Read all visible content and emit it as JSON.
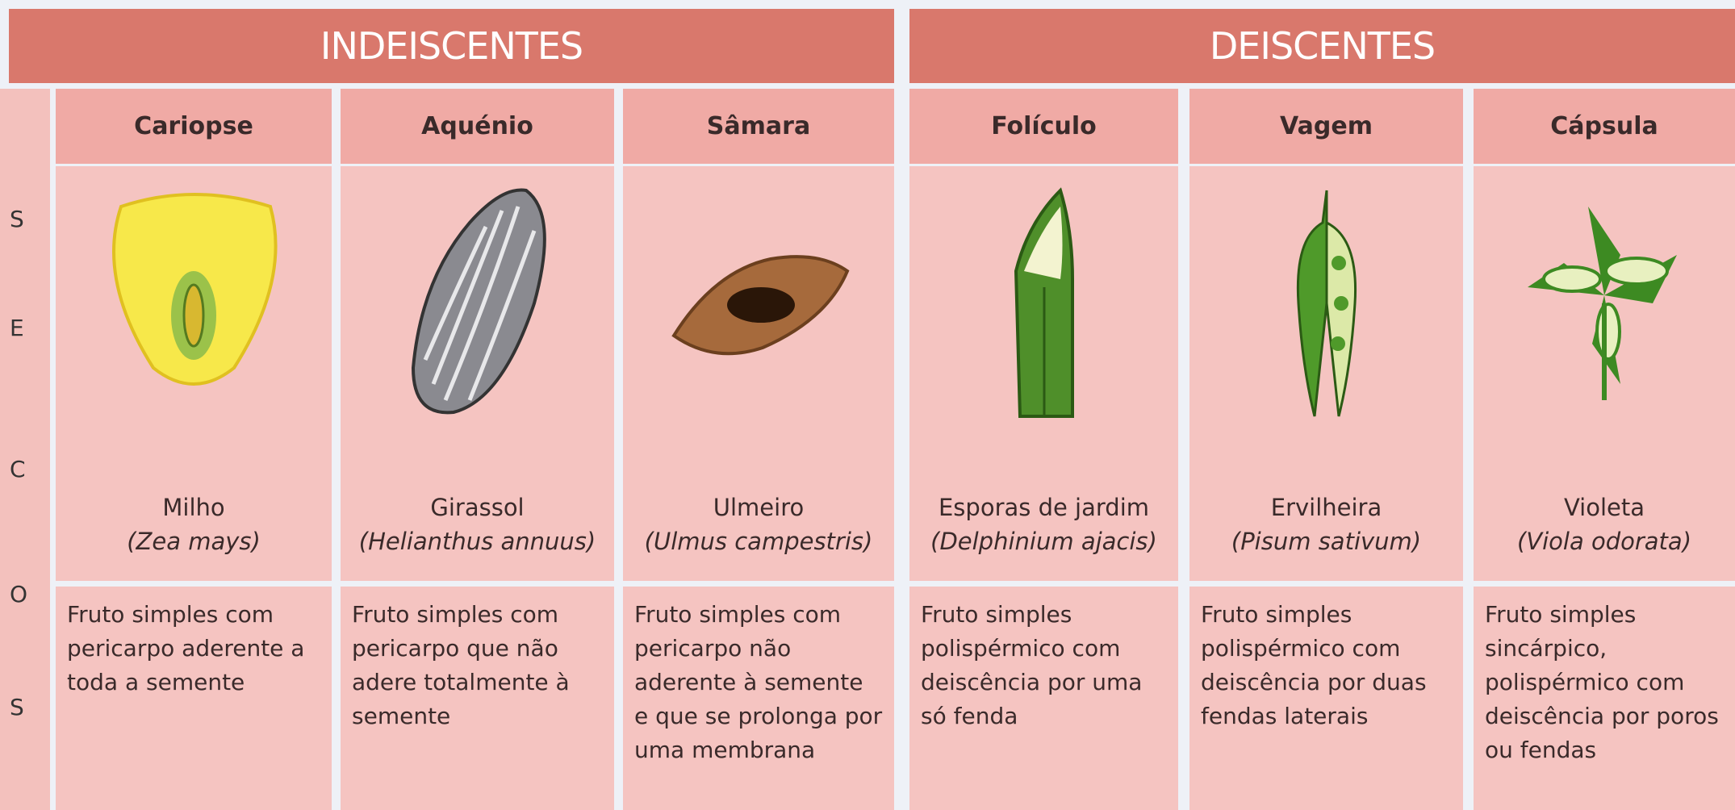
{
  "header": {
    "groups": [
      {
        "label": "INDEISCENTES"
      },
      {
        "label": "DEISCENTES"
      }
    ]
  },
  "side_label": [
    "S",
    "E",
    "C",
    "O",
    "S"
  ],
  "columns": [
    {
      "type": "Cariopse",
      "common_name": "Milho",
      "scientific_name": "(Zea mays)",
      "description": "Fruto simples com pericarpo aderente a toda a semente"
    },
    {
      "type": "Aquénio",
      "common_name": "Girassol",
      "scientific_name": "(Helianthus annuus)",
      "description": "Fruto simples com pericarpo que não adere totalmente à semente"
    },
    {
      "type": "Sâmara",
      "common_name": "Ulmeiro",
      "scientific_name": "(Ulmus campestris)",
      "description": "Fruto simples com pericarpo não aderente à semente e que se prolonga por uma membrana"
    },
    {
      "type": "Folículo",
      "common_name": "Esporas de jardim",
      "scientific_name": "(Delphinium ajacis)",
      "description": "Fruto simples polispérmico com deiscência por uma só fenda"
    },
    {
      "type": "Vagem",
      "common_name": "Ervilheira",
      "scientific_name": "(Pisum sativum)",
      "description": "Fruto simples polispérmico com deiscência por duas fendas laterais"
    },
    {
      "type": "Cápsula",
      "common_name": "Violeta",
      "scientific_name": "(Viola odorata)",
      "description": "Fruto simples sincárpico, polispérmico com deiscência por poros ou fendas"
    }
  ]
}
